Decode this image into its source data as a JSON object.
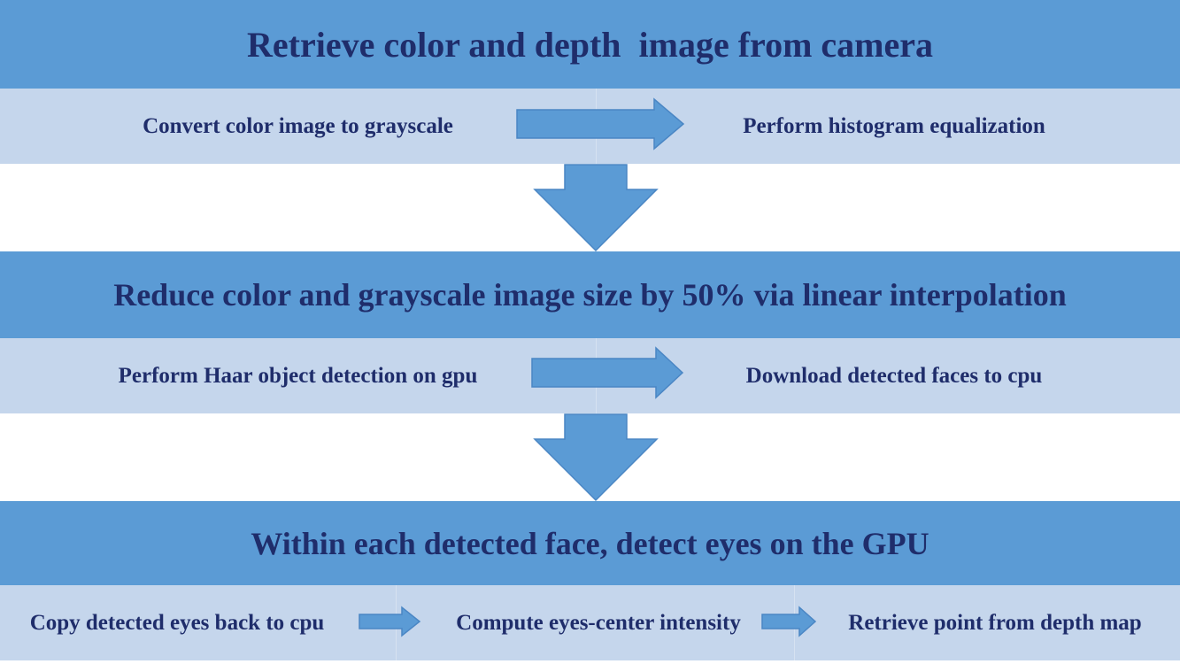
{
  "colors": {
    "header_bg": "#5b9bd5",
    "band_bg": "#c5d6ec",
    "text": "#1f2d6b",
    "arrow": "#5b9bd5"
  },
  "stage1": {
    "title": "Retrieve color and depth  image from camera",
    "steps": [
      "Convert color image to grayscale",
      "Perform histogram equalization"
    ]
  },
  "stage2": {
    "title": "Reduce color and grayscale image size by 50% via linear interpolation",
    "steps": [
      "Perform Haar object detection on gpu",
      "Download detected faces to cpu"
    ]
  },
  "stage3": {
    "title": "Within each detected face, detect eyes on the GPU",
    "steps": [
      "Copy detected eyes back to cpu",
      "Compute eyes-center intensity",
      "Retrieve point from depth map"
    ]
  }
}
